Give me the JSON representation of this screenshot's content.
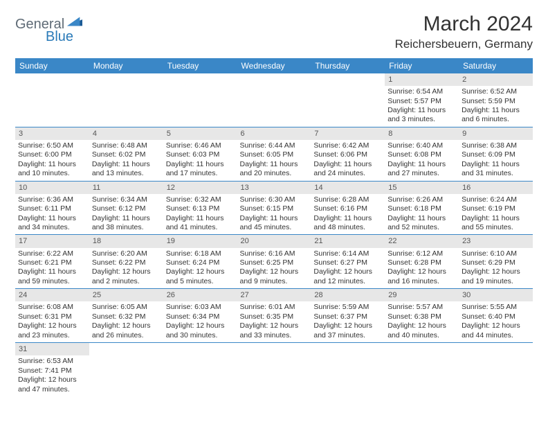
{
  "logo": {
    "general": "General",
    "blue": "Blue"
  },
  "title": "March 2024",
  "location": "Reichersbeuern, Germany",
  "colors": {
    "header_bg": "#3a87c7",
    "header_text": "#ffffff",
    "daynum_bg": "#e7e7e7",
    "rule": "#3a87c7",
    "logo_gray": "#5f6b76",
    "logo_blue": "#2a7ab8"
  },
  "weekdays": [
    "Sunday",
    "Monday",
    "Tuesday",
    "Wednesday",
    "Thursday",
    "Friday",
    "Saturday"
  ],
  "weeks": [
    [
      {
        "n": "",
        "sr": "",
        "ss": "",
        "dl": ""
      },
      {
        "n": "",
        "sr": "",
        "ss": "",
        "dl": ""
      },
      {
        "n": "",
        "sr": "",
        "ss": "",
        "dl": ""
      },
      {
        "n": "",
        "sr": "",
        "ss": "",
        "dl": ""
      },
      {
        "n": "",
        "sr": "",
        "ss": "",
        "dl": ""
      },
      {
        "n": "1",
        "sr": "Sunrise: 6:54 AM",
        "ss": "Sunset: 5:57 PM",
        "dl": "Daylight: 11 hours and 3 minutes."
      },
      {
        "n": "2",
        "sr": "Sunrise: 6:52 AM",
        "ss": "Sunset: 5:59 PM",
        "dl": "Daylight: 11 hours and 6 minutes."
      }
    ],
    [
      {
        "n": "3",
        "sr": "Sunrise: 6:50 AM",
        "ss": "Sunset: 6:00 PM",
        "dl": "Daylight: 11 hours and 10 minutes."
      },
      {
        "n": "4",
        "sr": "Sunrise: 6:48 AM",
        "ss": "Sunset: 6:02 PM",
        "dl": "Daylight: 11 hours and 13 minutes."
      },
      {
        "n": "5",
        "sr": "Sunrise: 6:46 AM",
        "ss": "Sunset: 6:03 PM",
        "dl": "Daylight: 11 hours and 17 minutes."
      },
      {
        "n": "6",
        "sr": "Sunrise: 6:44 AM",
        "ss": "Sunset: 6:05 PM",
        "dl": "Daylight: 11 hours and 20 minutes."
      },
      {
        "n": "7",
        "sr": "Sunrise: 6:42 AM",
        "ss": "Sunset: 6:06 PM",
        "dl": "Daylight: 11 hours and 24 minutes."
      },
      {
        "n": "8",
        "sr": "Sunrise: 6:40 AM",
        "ss": "Sunset: 6:08 PM",
        "dl": "Daylight: 11 hours and 27 minutes."
      },
      {
        "n": "9",
        "sr": "Sunrise: 6:38 AM",
        "ss": "Sunset: 6:09 PM",
        "dl": "Daylight: 11 hours and 31 minutes."
      }
    ],
    [
      {
        "n": "10",
        "sr": "Sunrise: 6:36 AM",
        "ss": "Sunset: 6:11 PM",
        "dl": "Daylight: 11 hours and 34 minutes."
      },
      {
        "n": "11",
        "sr": "Sunrise: 6:34 AM",
        "ss": "Sunset: 6:12 PM",
        "dl": "Daylight: 11 hours and 38 minutes."
      },
      {
        "n": "12",
        "sr": "Sunrise: 6:32 AM",
        "ss": "Sunset: 6:13 PM",
        "dl": "Daylight: 11 hours and 41 minutes."
      },
      {
        "n": "13",
        "sr": "Sunrise: 6:30 AM",
        "ss": "Sunset: 6:15 PM",
        "dl": "Daylight: 11 hours and 45 minutes."
      },
      {
        "n": "14",
        "sr": "Sunrise: 6:28 AM",
        "ss": "Sunset: 6:16 PM",
        "dl": "Daylight: 11 hours and 48 minutes."
      },
      {
        "n": "15",
        "sr": "Sunrise: 6:26 AM",
        "ss": "Sunset: 6:18 PM",
        "dl": "Daylight: 11 hours and 52 minutes."
      },
      {
        "n": "16",
        "sr": "Sunrise: 6:24 AM",
        "ss": "Sunset: 6:19 PM",
        "dl": "Daylight: 11 hours and 55 minutes."
      }
    ],
    [
      {
        "n": "17",
        "sr": "Sunrise: 6:22 AM",
        "ss": "Sunset: 6:21 PM",
        "dl": "Daylight: 11 hours and 59 minutes."
      },
      {
        "n": "18",
        "sr": "Sunrise: 6:20 AM",
        "ss": "Sunset: 6:22 PM",
        "dl": "Daylight: 12 hours and 2 minutes."
      },
      {
        "n": "19",
        "sr": "Sunrise: 6:18 AM",
        "ss": "Sunset: 6:24 PM",
        "dl": "Daylight: 12 hours and 5 minutes."
      },
      {
        "n": "20",
        "sr": "Sunrise: 6:16 AM",
        "ss": "Sunset: 6:25 PM",
        "dl": "Daylight: 12 hours and 9 minutes."
      },
      {
        "n": "21",
        "sr": "Sunrise: 6:14 AM",
        "ss": "Sunset: 6:27 PM",
        "dl": "Daylight: 12 hours and 12 minutes."
      },
      {
        "n": "22",
        "sr": "Sunrise: 6:12 AM",
        "ss": "Sunset: 6:28 PM",
        "dl": "Daylight: 12 hours and 16 minutes."
      },
      {
        "n": "23",
        "sr": "Sunrise: 6:10 AM",
        "ss": "Sunset: 6:29 PM",
        "dl": "Daylight: 12 hours and 19 minutes."
      }
    ],
    [
      {
        "n": "24",
        "sr": "Sunrise: 6:08 AM",
        "ss": "Sunset: 6:31 PM",
        "dl": "Daylight: 12 hours and 23 minutes."
      },
      {
        "n": "25",
        "sr": "Sunrise: 6:05 AM",
        "ss": "Sunset: 6:32 PM",
        "dl": "Daylight: 12 hours and 26 minutes."
      },
      {
        "n": "26",
        "sr": "Sunrise: 6:03 AM",
        "ss": "Sunset: 6:34 PM",
        "dl": "Daylight: 12 hours and 30 minutes."
      },
      {
        "n": "27",
        "sr": "Sunrise: 6:01 AM",
        "ss": "Sunset: 6:35 PM",
        "dl": "Daylight: 12 hours and 33 minutes."
      },
      {
        "n": "28",
        "sr": "Sunrise: 5:59 AM",
        "ss": "Sunset: 6:37 PM",
        "dl": "Daylight: 12 hours and 37 minutes."
      },
      {
        "n": "29",
        "sr": "Sunrise: 5:57 AM",
        "ss": "Sunset: 6:38 PM",
        "dl": "Daylight: 12 hours and 40 minutes."
      },
      {
        "n": "30",
        "sr": "Sunrise: 5:55 AM",
        "ss": "Sunset: 6:40 PM",
        "dl": "Daylight: 12 hours and 44 minutes."
      }
    ],
    [
      {
        "n": "31",
        "sr": "Sunrise: 6:53 AM",
        "ss": "Sunset: 7:41 PM",
        "dl": "Daylight: 12 hours and 47 minutes."
      },
      {
        "n": "",
        "sr": "",
        "ss": "",
        "dl": ""
      },
      {
        "n": "",
        "sr": "",
        "ss": "",
        "dl": ""
      },
      {
        "n": "",
        "sr": "",
        "ss": "",
        "dl": ""
      },
      {
        "n": "",
        "sr": "",
        "ss": "",
        "dl": ""
      },
      {
        "n": "",
        "sr": "",
        "ss": "",
        "dl": ""
      },
      {
        "n": "",
        "sr": "",
        "ss": "",
        "dl": ""
      }
    ]
  ]
}
